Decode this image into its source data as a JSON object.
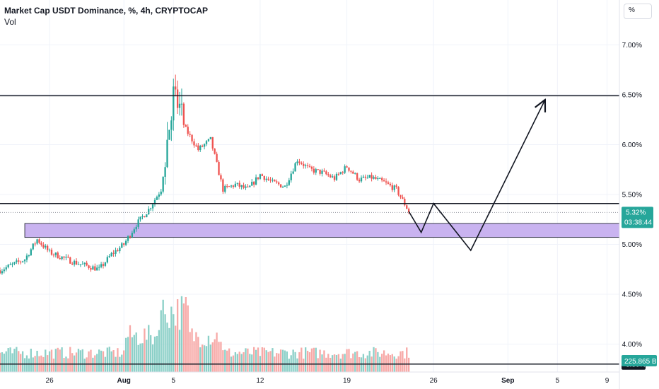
{
  "header": {
    "title": "Market Cap USDT Dominance, %, 4h, CRYPTOCAP",
    "volume_label": "Vol"
  },
  "toolbar": {
    "percent_label": "%"
  },
  "colors": {
    "up": "#26a69a",
    "down": "#ef5350",
    "up_volume": "#8cd0c8",
    "down_volume": "#f7a9a7",
    "zone_fill": "#c9b3f0",
    "line": "#131722",
    "grid": "#f0f3fa",
    "price_badge": "#26a69a"
  },
  "badges": {
    "last_price": "5.32%",
    "countdown": "03:38:44",
    "volume_level": "3.80%",
    "volume_value": "225.865 B"
  },
  "chart_data": {
    "type": "candlestick",
    "title": "Market Cap USDT Dominance, %, 4h, CRYPTOCAP",
    "y_axis": {
      "ticks": [
        "7.00%",
        "6.50%",
        "6.00%",
        "5.50%",
        "5.00%",
        "4.50%",
        "4.00%"
      ],
      "tick_values": [
        7.0,
        6.5,
        6.0,
        5.5,
        5.0,
        4.5,
        4.0
      ],
      "ylim": [
        3.55,
        7.45
      ],
      "scale": "linear"
    },
    "x_axis": {
      "ticks": [
        "26",
        "Aug",
        "5",
        "12",
        "19",
        "26",
        "Sep",
        "5",
        "9"
      ],
      "tick_dates": [
        "2024-07-26",
        "2024-08-01",
        "2024-08-05",
        "2024-08-12",
        "2024-08-19",
        "2024-08-26",
        "2024-09-01",
        "2024-09-05",
        "2024-09-09"
      ],
      "range": [
        "2024-07-22",
        "2024-09-10"
      ]
    },
    "grid": true,
    "price_path": [
      [
        "2024-07-22",
        4.74
      ],
      [
        "2024-07-24",
        4.85
      ],
      [
        "2024-07-25",
        5.05
      ],
      [
        "2024-07-26",
        4.92
      ],
      [
        "2024-07-28",
        4.82
      ],
      [
        "2024-07-30",
        4.75
      ],
      [
        "2024-07-31",
        4.9
      ],
      [
        "2024-08-01",
        5.0
      ],
      [
        "2024-08-02",
        5.2
      ],
      [
        "2024-08-03",
        5.35
      ],
      [
        "2024-08-04",
        5.55
      ],
      [
        "2024-08-05",
        6.45
      ],
      [
        "2024-08-06",
        6.15
      ],
      [
        "2024-08-07",
        5.95
      ],
      [
        "2024-08-08",
        6.05
      ],
      [
        "2024-08-09",
        5.55
      ],
      [
        "2024-08-10",
        5.6
      ],
      [
        "2024-08-11",
        5.55
      ],
      [
        "2024-08-12",
        5.7
      ],
      [
        "2024-08-13",
        5.62
      ],
      [
        "2024-08-14",
        5.58
      ],
      [
        "2024-08-15",
        5.85
      ],
      [
        "2024-08-16",
        5.75
      ],
      [
        "2024-08-17",
        5.72
      ],
      [
        "2024-08-18",
        5.66
      ],
      [
        "2024-08-19",
        5.78
      ],
      [
        "2024-08-20",
        5.65
      ],
      [
        "2024-08-21",
        5.67
      ],
      [
        "2024-08-22",
        5.62
      ],
      [
        "2024-08-23",
        5.55
      ],
      [
        "2024-08-24",
        5.33
      ]
    ],
    "levels": [
      {
        "value": 6.49,
        "style": "solid"
      },
      {
        "value": 5.41,
        "style": "solid"
      },
      {
        "value": 5.32,
        "style": "dotted"
      },
      {
        "value": 3.8,
        "style": "solid"
      }
    ],
    "zones": [
      {
        "from": "2024-07-24",
        "to": "2024-09-10",
        "top": 5.21,
        "bottom": 5.07
      }
    ],
    "projection": [
      [
        "2024-08-24",
        5.33
      ],
      [
        "2024-08-25",
        5.12
      ],
      [
        "2024-08-26",
        5.41
      ],
      [
        "2024-08-29",
        4.94
      ],
      [
        "2024-09-04",
        6.45
      ]
    ],
    "volume": {
      "range_b": [
        0,
        600
      ],
      "last": 225.865,
      "level": 3.8
    }
  }
}
